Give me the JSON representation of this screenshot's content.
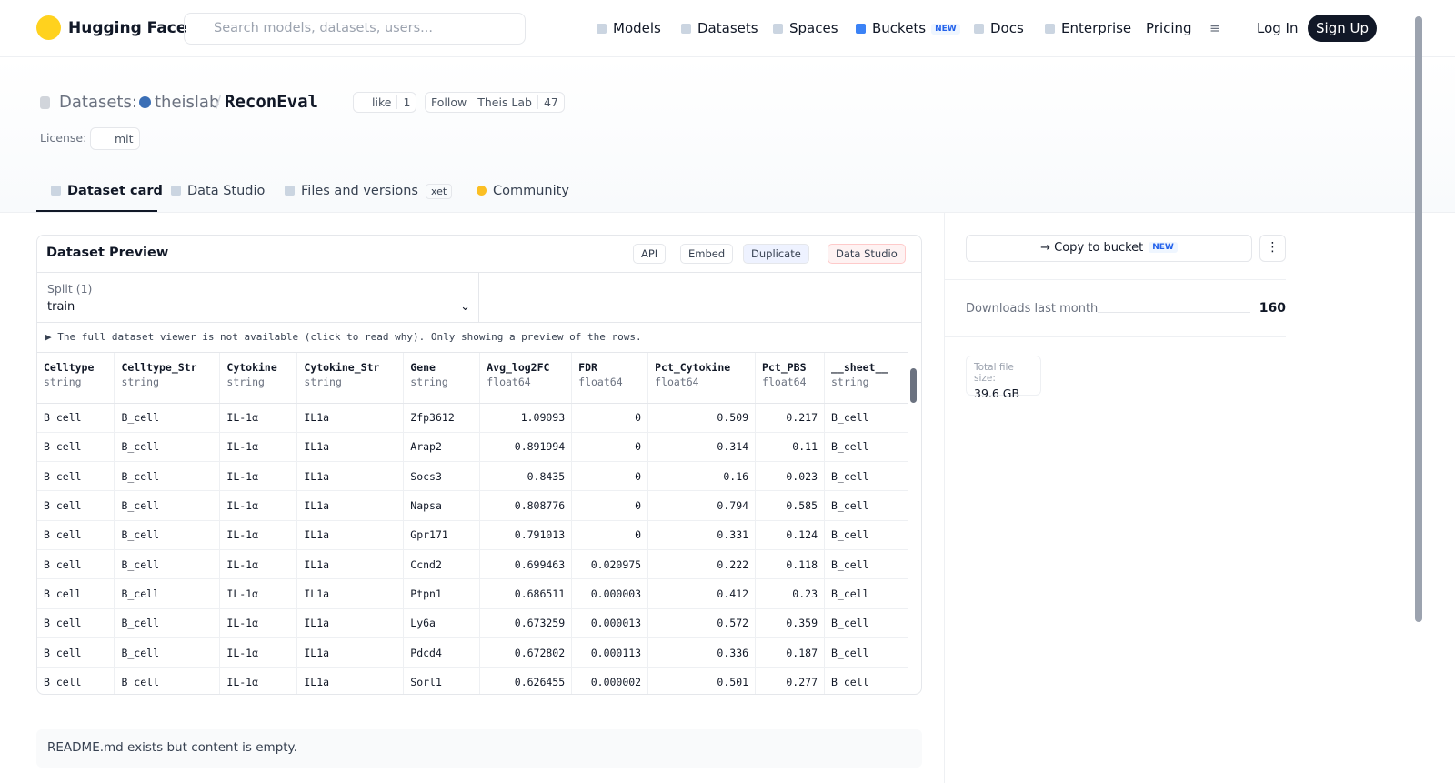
{
  "nav": {
    "brand": "Hugging Face",
    "search_placeholder": "Search models, datasets, users...",
    "links": [
      "Models",
      "Datasets",
      "Spaces",
      "Buckets",
      "Docs",
      "Enterprise",
      "Pricing"
    ],
    "buckets_badge": "NEW",
    "login": "Log In",
    "signup": "Sign Up"
  },
  "header": {
    "prefix": "Datasets:",
    "owner": "theislab",
    "separator": "/",
    "name": "ReconEval",
    "like": "like",
    "like_count": 1,
    "follow": "Follow",
    "follow_name": "Theis Lab",
    "follow_count": 47,
    "license_label": "License:",
    "license": "mit"
  },
  "tabs": {
    "items": [
      "Dataset card",
      "Data Studio",
      "Files and versions",
      "Community"
    ],
    "xet_badge": "xet"
  },
  "preview": {
    "title": "Dataset Preview",
    "buttons": [
      "API",
      "Embed",
      "Duplicate",
      "Data Studio"
    ],
    "split_label": "Split (1)",
    "split_value": "train",
    "notice": "The full dataset viewer is not available (click to read why). Only showing a preview of the rows."
  },
  "table": {
    "columns": [
      {
        "name": "Celltype",
        "type": "string"
      },
      {
        "name": "Celltype_Str",
        "type": "string"
      },
      {
        "name": "Cytokine",
        "type": "string"
      },
      {
        "name": "Cytokine_Str",
        "type": "string"
      },
      {
        "name": "Gene",
        "type": "string"
      },
      {
        "name": "Avg_log2FC",
        "type": "float64"
      },
      {
        "name": "FDR",
        "type": "float64"
      },
      {
        "name": "Pct_Cytokine",
        "type": "float64"
      },
      {
        "name": "Pct_PBS",
        "type": "float64"
      },
      {
        "name": "__sheet__",
        "type": "string"
      }
    ],
    "rows": [
      [
        "B cell",
        "B_cell",
        "IL-1α",
        "IL1a",
        "Zfp3612",
        1.09093,
        0,
        0.509,
        0.217,
        "B_cell"
      ],
      [
        "B cell",
        "B_cell",
        "IL-1α",
        "IL1a",
        "Arap2",
        0.891994,
        0,
        0.314,
        0.11,
        "B_cell"
      ],
      [
        "B cell",
        "B_cell",
        "IL-1α",
        "IL1a",
        "Socs3",
        0.8435,
        0,
        0.16,
        0.023,
        "B_cell"
      ],
      [
        "B cell",
        "B_cell",
        "IL-1α",
        "IL1a",
        "Napsa",
        0.808776,
        0,
        0.794,
        0.585,
        "B_cell"
      ],
      [
        "B cell",
        "B_cell",
        "IL-1α",
        "IL1a",
        "Gpr171",
        0.791013,
        0,
        0.331,
        0.124,
        "B_cell"
      ],
      [
        "B cell",
        "B_cell",
        "IL-1α",
        "IL1a",
        "Ccnd2",
        0.699463,
        0.020975,
        0.222,
        0.118,
        "B_cell"
      ],
      [
        "B cell",
        "B_cell",
        "IL-1α",
        "IL1a",
        "Ptpn1",
        0.686511,
        3e-06,
        0.412,
        0.23,
        "B_cell"
      ],
      [
        "B cell",
        "B_cell",
        "IL-1α",
        "IL1a",
        "Ly6a",
        0.673259,
        1.3e-05,
        0.572,
        0.359,
        "B_cell"
      ],
      [
        "B cell",
        "B_cell",
        "IL-1α",
        "IL1a",
        "Pdcd4",
        0.672802,
        0.000113,
        0.336,
        0.187,
        "B_cell"
      ],
      [
        "B cell",
        "B_cell",
        "IL-1α",
        "IL1a",
        "Sorl1",
        0.626455,
        2e-06,
        0.501,
        0.277,
        "B_cell"
      ]
    ]
  },
  "readme": "README.md exists but content is empty.",
  "sidebar": {
    "copy": "Copy to bucket",
    "copy_badge": "NEW",
    "downloads_label": "Downloads last month",
    "downloads": 160,
    "file_size_label": "Total file size:",
    "file_size": "39.6 GB"
  }
}
